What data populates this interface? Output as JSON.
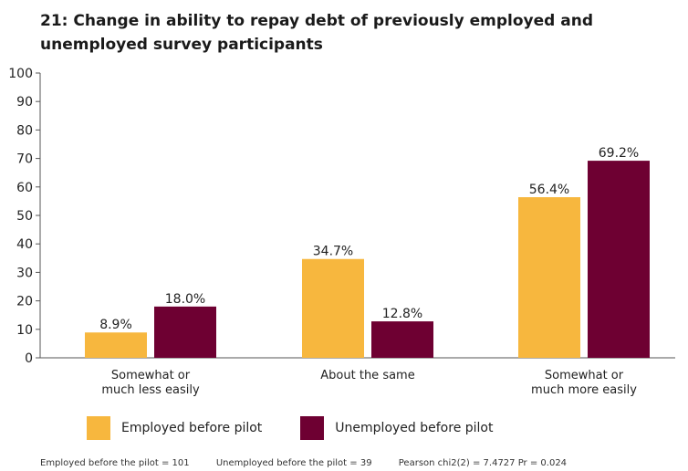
{
  "chart_data": {
    "type": "bar",
    "title": "21: Change in ability to repay debt of previously employed and unemployed survey participants",
    "categories": [
      [
        "Somewhat or",
        "much less easily"
      ],
      [
        "About the same"
      ],
      [
        "Somewhat or",
        "much more easily"
      ]
    ],
    "series": [
      {
        "name": "Employed before pilot",
        "color": "#F7B73E",
        "values": [
          8.9,
          34.7,
          56.4
        ],
        "labels": [
          "8.9%",
          "34.7%",
          "56.4%"
        ]
      },
      {
        "name": "Unemployed before pilot",
        "color": "#6E0032",
        "values": [
          18.0,
          12.8,
          69.2
        ],
        "labels": [
          "18.0%",
          "12.8%",
          "69.2%"
        ]
      }
    ],
    "ylim": [
      0,
      100
    ],
    "yticks": [
      0,
      10,
      20,
      30,
      40,
      50,
      60,
      70,
      80,
      90,
      100
    ],
    "grid": false,
    "legend_position": "bottom",
    "footnotes": [
      "Employed before the pilot = 101",
      "Unemployed before the pilot = 39",
      "Pearson chi2(2) = 7.4727 Pr = 0.024"
    ]
  }
}
